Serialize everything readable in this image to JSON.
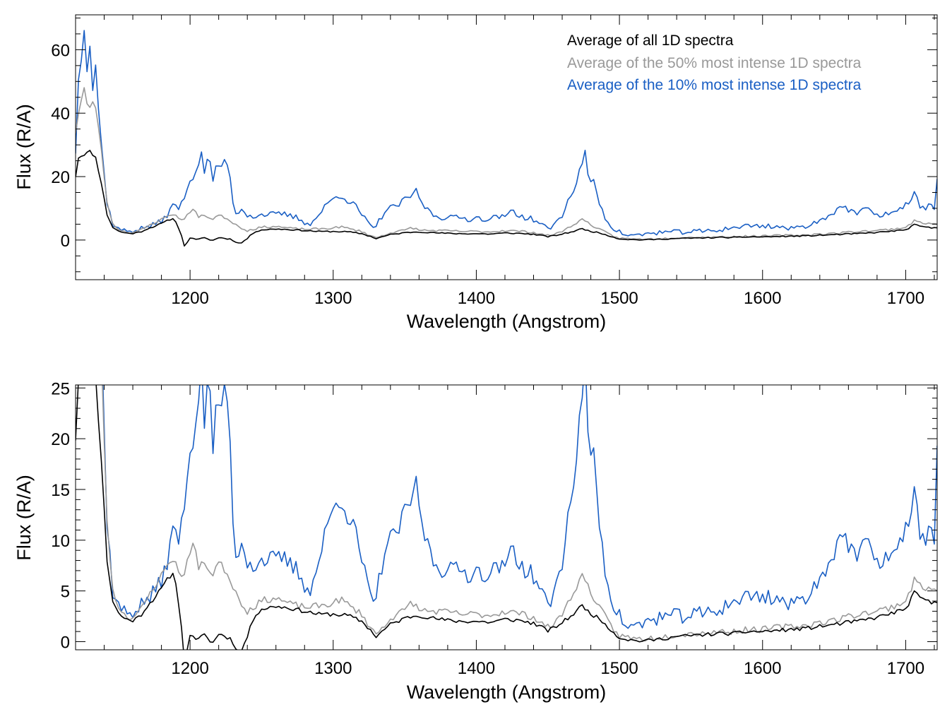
{
  "colors": {
    "all": "#000000",
    "top50": "#999999",
    "top10": "#1a5fc4",
    "axis": "#000000"
  },
  "legend": [
    {
      "series": "all",
      "label": "Average of all 1D spectra"
    },
    {
      "series": "top50",
      "label": "Average of the 50% most intense 1D spectra"
    },
    {
      "series": "top10",
      "label": "Average of the 10% most intense 1D spectra"
    }
  ],
  "chart_data": [
    {
      "type": "line",
      "xlabel": "Wavelength (Angstrom)",
      "ylabel": "Flux (R/A)",
      "xlim": [
        1120,
        1722
      ],
      "ylim": [
        -12.5,
        71
      ],
      "xticks": [
        1200,
        1300,
        1400,
        1500,
        1600,
        1700
      ],
      "yticks": [
        0,
        20,
        40,
        60
      ],
      "x_minor_step": 20,
      "y_minor_step": 5,
      "legend_position": "top-right",
      "grid": false,
      "show_legend": true
    },
    {
      "type": "line",
      "xlabel": "Wavelength (Angstrom)",
      "ylabel": "Flux (R/A)",
      "xlim": [
        1120,
        1722
      ],
      "ylim": [
        -0.8,
        25.3
      ],
      "xticks": [
        1200,
        1300,
        1400,
        1500,
        1600,
        1700
      ],
      "yticks": [
        0,
        5,
        10,
        15,
        20,
        25
      ],
      "x_minor_step": 20,
      "y_minor_step": 1,
      "grid": false,
      "show_legend": false
    }
  ],
  "series_data": {
    "x_start": 1120,
    "x_step": 2,
    "noise_amplitude": {
      "all": 0.18,
      "top50": 0.3,
      "top10": 0.7
    },
    "all_knots": [
      [
        1120,
        20
      ],
      [
        1122,
        26
      ],
      [
        1126,
        27
      ],
      [
        1130,
        28
      ],
      [
        1134,
        26
      ],
      [
        1138,
        18
      ],
      [
        1142,
        8
      ],
      [
        1146,
        4
      ],
      [
        1150,
        2.8
      ],
      [
        1155,
        2.2
      ],
      [
        1160,
        2.1
      ],
      [
        1165,
        2.5
      ],
      [
        1170,
        3.5
      ],
      [
        1175,
        4.3
      ],
      [
        1180,
        5.2
      ],
      [
        1185,
        6.3
      ],
      [
        1188,
        6.8
      ],
      [
        1191,
        5
      ],
      [
        1194,
        1.5
      ],
      [
        1196,
        -2
      ],
      [
        1200,
        0.7
      ],
      [
        1205,
        0
      ],
      [
        1210,
        0.9
      ],
      [
        1215,
        -0.3
      ],
      [
        1220,
        0.8
      ],
      [
        1228,
        0.3
      ],
      [
        1235,
        -1.2
      ],
      [
        1240,
        0.5
      ],
      [
        1245,
        2.6
      ],
      [
        1250,
        3.2
      ],
      [
        1260,
        3.5
      ],
      [
        1270,
        3.3
      ],
      [
        1280,
        3
      ],
      [
        1290,
        2.7
      ],
      [
        1300,
        2.7
      ],
      [
        1310,
        2.6
      ],
      [
        1320,
        2
      ],
      [
        1325,
        1.3
      ],
      [
        1330,
        0.5
      ],
      [
        1335,
        1.1
      ],
      [
        1340,
        1.7
      ],
      [
        1350,
        2.3
      ],
      [
        1355,
        2.5
      ],
      [
        1360,
        2.6
      ],
      [
        1370,
        2.3
      ],
      [
        1380,
        2.1
      ],
      [
        1390,
        2
      ],
      [
        1400,
        2
      ],
      [
        1410,
        1.9
      ],
      [
        1420,
        2.2
      ],
      [
        1430,
        2.1
      ],
      [
        1440,
        1.8
      ],
      [
        1450,
        1.1
      ],
      [
        1455,
        1.4
      ],
      [
        1460,
        1.9
      ],
      [
        1465,
        2.4
      ],
      [
        1470,
        3
      ],
      [
        1474,
        3.6
      ],
      [
        1478,
        3
      ],
      [
        1485,
        2.3
      ],
      [
        1490,
        1.8
      ],
      [
        1495,
        1
      ],
      [
        1500,
        0.4
      ],
      [
        1510,
        0.1
      ],
      [
        1520,
        0.1
      ],
      [
        1530,
        0.3
      ],
      [
        1540,
        0.5
      ],
      [
        1550,
        0.6
      ],
      [
        1560,
        0.7
      ],
      [
        1570,
        0.8
      ],
      [
        1580,
        0.8
      ],
      [
        1590,
        1
      ],
      [
        1600,
        1
      ],
      [
        1610,
        1.1
      ],
      [
        1620,
        1.2
      ],
      [
        1630,
        1.3
      ],
      [
        1640,
        1.5
      ],
      [
        1650,
        1.7
      ],
      [
        1660,
        1.9
      ],
      [
        1670,
        2.1
      ],
      [
        1680,
        2.4
      ],
      [
        1690,
        2.8
      ],
      [
        1700,
        3.2
      ],
      [
        1706,
        4.8
      ],
      [
        1712,
        4.2
      ],
      [
        1718,
        3.8
      ],
      [
        1722,
        4
      ]
    ],
    "top50_knots": [
      [
        1120,
        34
      ],
      [
        1122,
        40
      ],
      [
        1126,
        48
      ],
      [
        1129,
        40
      ],
      [
        1132,
        44
      ],
      [
        1135,
        40
      ],
      [
        1138,
        28
      ],
      [
        1142,
        12
      ],
      [
        1146,
        5
      ],
      [
        1150,
        3.5
      ],
      [
        1155,
        2.5
      ],
      [
        1160,
        2.4
      ],
      [
        1165,
        3
      ],
      [
        1170,
        4.2
      ],
      [
        1175,
        5.5
      ],
      [
        1180,
        6.5
      ],
      [
        1185,
        7.8
      ],
      [
        1188,
        8.2
      ],
      [
        1192,
        7
      ],
      [
        1196,
        6.5
      ],
      [
        1200,
        9
      ],
      [
        1203,
        10
      ],
      [
        1206,
        7
      ],
      [
        1210,
        8
      ],
      [
        1215,
        6.5
      ],
      [
        1220,
        7.8
      ],
      [
        1225,
        7
      ],
      [
        1230,
        5.5
      ],
      [
        1235,
        4
      ],
      [
        1240,
        3
      ],
      [
        1245,
        3.5
      ],
      [
        1250,
        4
      ],
      [
        1255,
        4.2
      ],
      [
        1260,
        4.3
      ],
      [
        1270,
        3.7
      ],
      [
        1280,
        3.4
      ],
      [
        1290,
        3.5
      ],
      [
        1300,
        3.8
      ],
      [
        1305,
        4.2
      ],
      [
        1310,
        3.7
      ],
      [
        1320,
        2.7
      ],
      [
        1325,
        1.6
      ],
      [
        1330,
        0.7
      ],
      [
        1335,
        1.5
      ],
      [
        1340,
        2.3
      ],
      [
        1350,
        3.1
      ],
      [
        1355,
        4
      ],
      [
        1360,
        3.1
      ],
      [
        1370,
        3
      ],
      [
        1380,
        2.9
      ],
      [
        1390,
        2.7
      ],
      [
        1400,
        2.7
      ],
      [
        1410,
        2.6
      ],
      [
        1420,
        3
      ],
      [
        1430,
        2.8
      ],
      [
        1440,
        2.4
      ],
      [
        1450,
        1.4
      ],
      [
        1455,
        1.8
      ],
      [
        1460,
        2.8
      ],
      [
        1465,
        4
      ],
      [
        1470,
        5.5
      ],
      [
        1474,
        6.5
      ],
      [
        1478,
        5.5
      ],
      [
        1485,
        3.5
      ],
      [
        1490,
        2.5
      ],
      [
        1495,
        1.3
      ],
      [
        1500,
        0.6
      ],
      [
        1510,
        0.3
      ],
      [
        1520,
        0.3
      ],
      [
        1530,
        0.5
      ],
      [
        1540,
        0.7
      ],
      [
        1550,
        0.8
      ],
      [
        1560,
        0.9
      ],
      [
        1570,
        1
      ],
      [
        1580,
        1
      ],
      [
        1590,
        1.2
      ],
      [
        1600,
        1.2
      ],
      [
        1610,
        1.4
      ],
      [
        1620,
        1.5
      ],
      [
        1630,
        1.6
      ],
      [
        1640,
        1.9
      ],
      [
        1650,
        2.1
      ],
      [
        1660,
        2.5
      ],
      [
        1670,
        2.8
      ],
      [
        1680,
        3
      ],
      [
        1690,
        3.4
      ],
      [
        1700,
        4
      ],
      [
        1706,
        6
      ],
      [
        1712,
        5.5
      ],
      [
        1718,
        5
      ],
      [
        1722,
        5.2
      ]
    ],
    "top10_knots": [
      [
        1120,
        28
      ],
      [
        1122,
        50
      ],
      [
        1124,
        58
      ],
      [
        1126,
        68
      ],
      [
        1128,
        55
      ],
      [
        1130,
        62
      ],
      [
        1132,
        48
      ],
      [
        1134,
        55
      ],
      [
        1136,
        42
      ],
      [
        1138,
        30
      ],
      [
        1142,
        12
      ],
      [
        1146,
        5
      ],
      [
        1150,
        3.5
      ],
      [
        1155,
        2.8
      ],
      [
        1160,
        3
      ],
      [
        1165,
        3.5
      ],
      [
        1170,
        4.2
      ],
      [
        1175,
        4.8
      ],
      [
        1180,
        6
      ],
      [
        1185,
        8.5
      ],
      [
        1188,
        11
      ],
      [
        1192,
        10
      ],
      [
        1195,
        13
      ],
      [
        1198,
        15
      ],
      [
        1200,
        19
      ],
      [
        1203,
        21
      ],
      [
        1206,
        24
      ],
      [
        1208,
        28
      ],
      [
        1210,
        22
      ],
      [
        1213,
        26
      ],
      [
        1216,
        19
      ],
      [
        1219,
        25
      ],
      [
        1222,
        22
      ],
      [
        1225,
        26
      ],
      [
        1228,
        20
      ],
      [
        1230,
        11
      ],
      [
        1233,
        8
      ],
      [
        1236,
        10
      ],
      [
        1240,
        8
      ],
      [
        1245,
        7.5
      ],
      [
        1250,
        8
      ],
      [
        1255,
        8.2
      ],
      [
        1260,
        8
      ],
      [
        1265,
        8.2
      ],
      [
        1270,
        7.6
      ],
      [
        1275,
        7
      ],
      [
        1280,
        5.6
      ],
      [
        1285,
        5.2
      ],
      [
        1290,
        8
      ],
      [
        1295,
        11
      ],
      [
        1300,
        13
      ],
      [
        1305,
        14.5
      ],
      [
        1310,
        12.5
      ],
      [
        1315,
        11
      ],
      [
        1320,
        8
      ],
      [
        1325,
        5
      ],
      [
        1328,
        3.4
      ],
      [
        1332,
        6
      ],
      [
        1336,
        9
      ],
      [
        1340,
        10
      ],
      [
        1345,
        11
      ],
      [
        1350,
        12.5
      ],
      [
        1355,
        14
      ],
      [
        1357,
        16.5
      ],
      [
        1360,
        13
      ],
      [
        1365,
        10
      ],
      [
        1370,
        8
      ],
      [
        1375,
        7
      ],
      [
        1380,
        7.5
      ],
      [
        1385,
        7
      ],
      [
        1390,
        7
      ],
      [
        1395,
        6.6
      ],
      [
        1400,
        7
      ],
      [
        1405,
        6.8
      ],
      [
        1410,
        6.5
      ],
      [
        1415,
        7.8
      ],
      [
        1420,
        6.8
      ],
      [
        1425,
        10
      ],
      [
        1430,
        7.5
      ],
      [
        1435,
        7
      ],
      [
        1440,
        6.5
      ],
      [
        1445,
        5
      ],
      [
        1450,
        3.5
      ],
      [
        1455,
        5
      ],
      [
        1460,
        8
      ],
      [
        1465,
        13
      ],
      [
        1470,
        18
      ],
      [
        1474,
        25
      ],
      [
        1476,
        27
      ],
      [
        1478,
        20
      ],
      [
        1482,
        18
      ],
      [
        1486,
        12
      ],
      [
        1490,
        7
      ],
      [
        1495,
        4
      ],
      [
        1500,
        2.5
      ],
      [
        1505,
        1.5
      ],
      [
        1510,
        1.4
      ],
      [
        1520,
        2
      ],
      [
        1530,
        2.5
      ],
      [
        1540,
        2.5
      ],
      [
        1550,
        2.6
      ],
      [
        1560,
        2.8
      ],
      [
        1570,
        3.2
      ],
      [
        1580,
        4
      ],
      [
        1590,
        4.5
      ],
      [
        1600,
        4.5
      ],
      [
        1610,
        4.3
      ],
      [
        1620,
        3.5
      ],
      [
        1630,
        4.5
      ],
      [
        1640,
        6
      ],
      [
        1650,
        9
      ],
      [
        1655,
        11
      ],
      [
        1660,
        9.5
      ],
      [
        1665,
        8
      ],
      [
        1670,
        10
      ],
      [
        1675,
        9
      ],
      [
        1680,
        7.5
      ],
      [
        1685,
        8.5
      ],
      [
        1690,
        8.5
      ],
      [
        1695,
        9
      ],
      [
        1700,
        11
      ],
      [
        1706,
        14.5
      ],
      [
        1710,
        11
      ],
      [
        1715,
        10
      ],
      [
        1718,
        12
      ],
      [
        1720,
        9
      ],
      [
        1722,
        20
      ]
    ]
  }
}
